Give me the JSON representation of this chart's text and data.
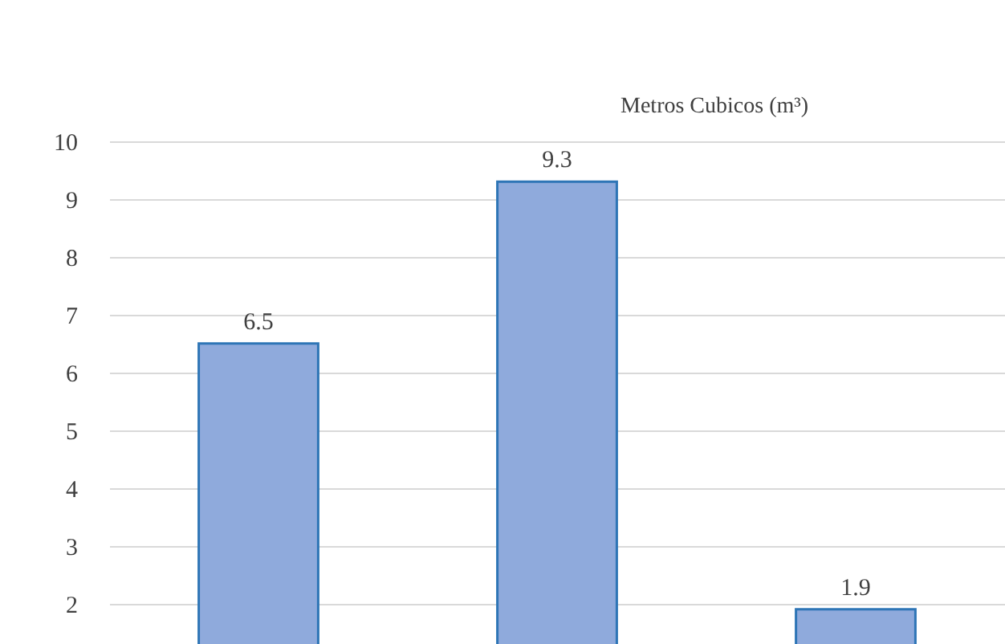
{
  "chart_data": {
    "type": "bar",
    "title": "Metros Cubicos (m³)",
    "categories": [
      null,
      null,
      null
    ],
    "values": [
      6.5,
      9.3,
      1.9
    ],
    "color": "#8faadc",
    "ylim": [
      1.3,
      10
    ],
    "yticks": [
      2,
      3,
      4,
      5,
      6,
      7,
      8,
      9,
      10
    ],
    "grid": "y",
    "data_labels": true,
    "tick_labels": "y"
  }
}
